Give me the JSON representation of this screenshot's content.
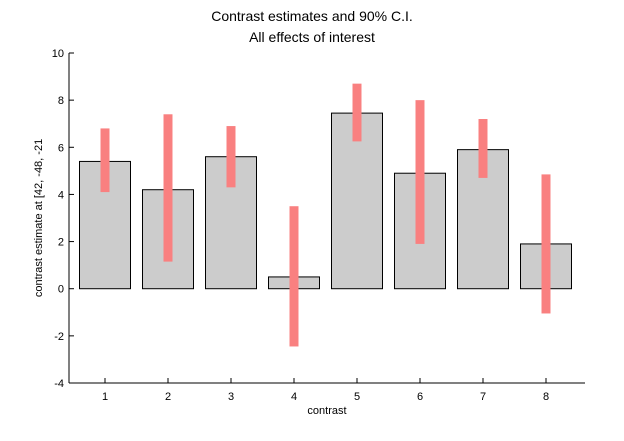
{
  "chart_data": {
    "type": "bar",
    "title": "Contrast estimates and 90% C.I.",
    "subtitle": "All effects of interest",
    "xlabel": "contrast",
    "ylabel": "contrast estimate at [42, -48, -21",
    "categories": [
      "1",
      "2",
      "3",
      "4",
      "5",
      "6",
      "7",
      "8"
    ],
    "values": [
      5.4,
      4.2,
      5.6,
      0.5,
      7.45,
      4.9,
      5.9,
      1.9
    ],
    "ci_lower": [
      4.1,
      1.15,
      4.3,
      -2.45,
      6.25,
      1.9,
      4.7,
      -1.05
    ],
    "ci_upper": [
      6.8,
      7.4,
      6.9,
      3.5,
      8.7,
      8.0,
      7.2,
      4.85
    ],
    "ylim": [
      -4,
      10
    ],
    "yticks": [
      "-4",
      "-2",
      "0",
      "2",
      "4",
      "6",
      "8",
      "10"
    ],
    "grid": false,
    "colors": {
      "bar_fill": "#cccccc",
      "bar_stroke": "#000000",
      "ci": "#f98080"
    }
  }
}
